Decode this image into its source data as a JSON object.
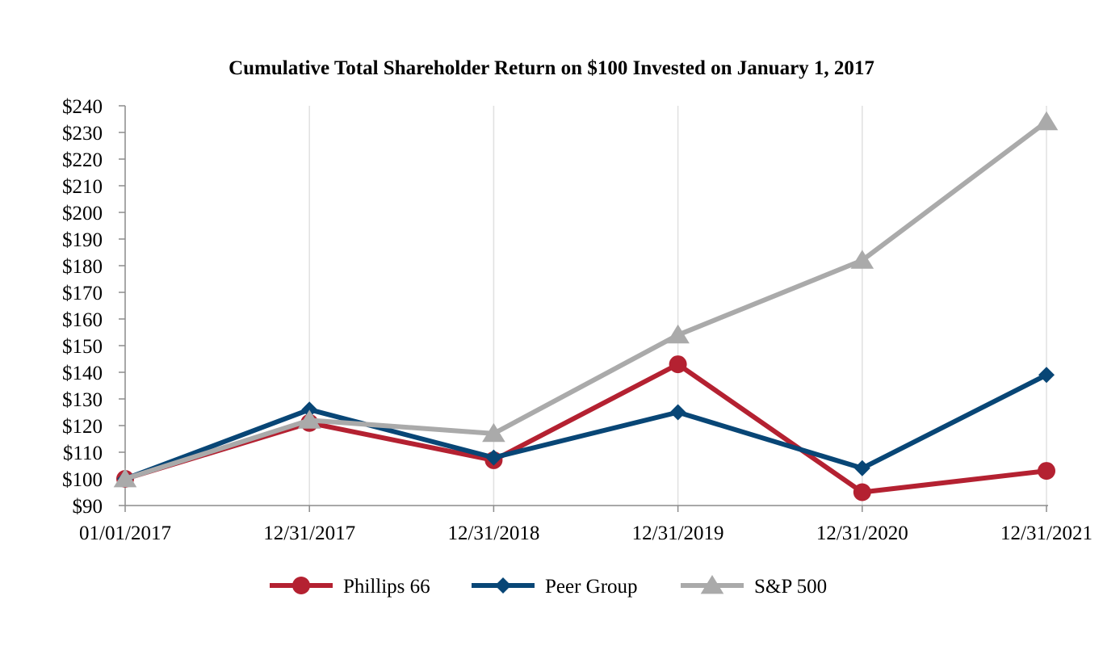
{
  "chart_data": {
    "type": "line",
    "title": "Cumulative Total Shareholder Return on $100 Invested on January 1, 2017",
    "xlabel": "",
    "ylabel": "",
    "categories": [
      "01/01/2017",
      "12/31/2017",
      "12/31/2018",
      "12/31/2019",
      "12/31/2020",
      "12/31/2021"
    ],
    "y_tick_labels": [
      "$90",
      "$100",
      "$110",
      "$120",
      "$130",
      "$140",
      "$150",
      "$160",
      "$170",
      "$180",
      "$190",
      "$200",
      "$210",
      "$220",
      "$230",
      "$240"
    ],
    "ylim": [
      90,
      240
    ],
    "y_tick_step": 10,
    "grid": "vertical",
    "legend_position": "bottom-center",
    "series": [
      {
        "name": "Phillips 66",
        "values": [
          100,
          121,
          107,
          143,
          95,
          103
        ],
        "color": "#b42131",
        "marker": "circle"
      },
      {
        "name": "Peer Group",
        "values": [
          100,
          126,
          108,
          125,
          104,
          139
        ],
        "color": "#084676",
        "marker": "diamond"
      },
      {
        "name": "S&P 500",
        "values": [
          100,
          122,
          117,
          154,
          182,
          234
        ],
        "color": "#aaaaaa",
        "marker": "triangle"
      }
    ]
  }
}
